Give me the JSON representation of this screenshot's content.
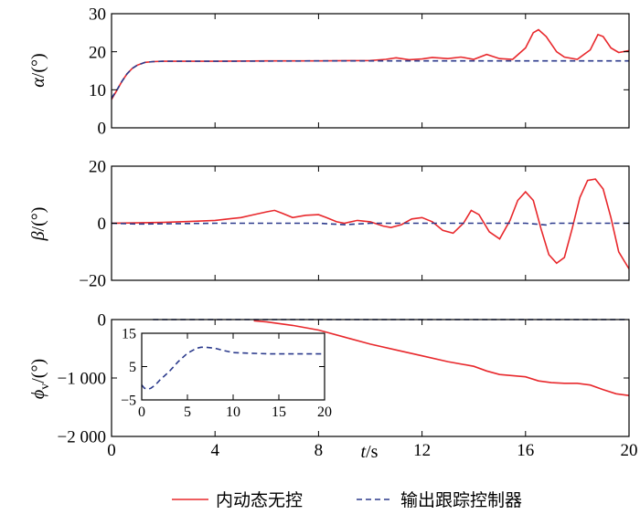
{
  "colors": {
    "red": "#e8282c",
    "blue": "#2b3a8c",
    "axis": "#000000"
  },
  "legend": {
    "red_label": "内动态无控",
    "blue_label": "输出跟踪控制器"
  },
  "xaxis": {
    "label_italic": "t",
    "label_rest": "/s",
    "ticks": [
      "0",
      "4",
      "8",
      "12",
      "16",
      "20"
    ],
    "range": [
      0,
      20
    ]
  },
  "chart_data": [
    {
      "type": "line",
      "ylabel": "α/(°)",
      "ylabel_italic": "α",
      "ylabel_rest": "/(°)",
      "xlim": [
        0,
        20
      ],
      "ylim": [
        0,
        30
      ],
      "yticks": [
        0,
        10,
        20,
        30
      ],
      "ytick_labels": [
        "0",
        "10",
        "20",
        "30"
      ],
      "series": [
        {
          "name": "内动态无控",
          "color": "#e8282c",
          "style": "solid",
          "x": [
            0,
            0.2,
            0.4,
            0.6,
            0.8,
            1.0,
            1.3,
            1.6,
            2.0,
            3.0,
            4.0,
            6.0,
            8.0,
            10.0,
            10.6,
            11.0,
            11.5,
            12.0,
            12.4,
            13.0,
            13.5,
            14.0,
            14.5,
            15.0,
            15.5,
            16.0,
            16.3,
            16.5,
            16.8,
            17.2,
            17.5,
            18.0,
            18.5,
            18.8,
            19.0,
            19.3,
            19.6,
            20.0
          ],
          "y": [
            7.5,
            9.8,
            12.2,
            14.2,
            15.6,
            16.5,
            17.2,
            17.4,
            17.5,
            17.5,
            17.5,
            17.6,
            17.6,
            17.7,
            18.0,
            18.4,
            17.9,
            18.1,
            18.5,
            18.2,
            18.6,
            18.0,
            19.3,
            18.2,
            18.0,
            21.0,
            25.0,
            25.8,
            24.0,
            20.0,
            18.6,
            18.0,
            20.5,
            24.5,
            24.0,
            21.0,
            19.8,
            20.3
          ]
        },
        {
          "name": "输出跟踪控制器",
          "color": "#2b3a8c",
          "style": "dashed",
          "x": [
            0,
            0.2,
            0.4,
            0.6,
            0.8,
            1.0,
            1.3,
            1.6,
            2.0,
            4.0,
            8.0,
            12.0,
            16.0,
            20.0
          ],
          "y": [
            7.8,
            9.9,
            12.2,
            14.2,
            15.6,
            16.5,
            17.2,
            17.4,
            17.5,
            17.5,
            17.6,
            17.6,
            17.6,
            17.6
          ]
        }
      ]
    },
    {
      "type": "line",
      "ylabel": "β/(°)",
      "ylabel_italic": "β",
      "ylabel_rest": "/(°)",
      "xlim": [
        0,
        20
      ],
      "ylim": [
        -20,
        20
      ],
      "yticks": [
        -20,
        0,
        20
      ],
      "ytick_labels": [
        "−20",
        "0",
        "20"
      ],
      "series": [
        {
          "name": "内动态无控",
          "color": "#e8282c",
          "style": "solid",
          "x": [
            0,
            2.0,
            3.0,
            4.0,
            5.0,
            5.5,
            6.0,
            6.3,
            6.6,
            7.0,
            7.5,
            8.0,
            8.3,
            8.7,
            9.0,
            9.5,
            10.0,
            10.5,
            10.8,
            11.2,
            11.6,
            12.0,
            12.4,
            12.8,
            13.2,
            13.6,
            13.9,
            14.2,
            14.6,
            15.0,
            15.4,
            15.7,
            16.0,
            16.3,
            16.6,
            16.9,
            17.2,
            17.5,
            17.8,
            18.1,
            18.4,
            18.7,
            19.0,
            19.3,
            19.6,
            20.0
          ],
          "y": [
            0,
            0.3,
            0.6,
            1.0,
            2.0,
            3.0,
            4.0,
            4.5,
            3.5,
            2.0,
            2.8,
            3.0,
            2.0,
            0.5,
            0.0,
            1.0,
            0.5,
            -1.0,
            -1.5,
            -0.5,
            1.5,
            2.0,
            0.5,
            -2.5,
            -3.5,
            0.0,
            4.5,
            3.0,
            -3.0,
            -5.5,
            1.0,
            8.0,
            11.0,
            8.0,
            -2.0,
            -11.0,
            -14.0,
            -12.0,
            -2.0,
            9.0,
            15.0,
            15.5,
            12.0,
            2.0,
            -10.0,
            -16.0
          ]
        },
        {
          "name": "输出跟踪控制器",
          "color": "#2b3a8c",
          "style": "dashed",
          "x": [
            0,
            1.0,
            2.0,
            4.0,
            6.0,
            8.0,
            9.0,
            10.0,
            12.0,
            14.0,
            16.0,
            16.8,
            17.0,
            18.0,
            20.0
          ],
          "y": [
            0,
            -0.3,
            -0.2,
            0,
            0,
            0,
            -0.5,
            0,
            0,
            0,
            0,
            -0.6,
            0,
            0,
            0
          ]
        }
      ]
    },
    {
      "type": "line",
      "ylabel": "ϕv/(°)",
      "ylabel_italic": "ϕ",
      "ylabel_sub": "v",
      "ylabel_rest": "/(°)",
      "xlim": [
        0,
        20
      ],
      "ylim": [
        -2000,
        0
      ],
      "yticks": [
        -2000,
        -1000,
        0
      ],
      "ytick_labels": [
        "−2 000",
        "−1 000",
        "0"
      ],
      "series": [
        {
          "name": "内动态无控",
          "color": "#e8282c",
          "style": "solid",
          "x": [
            5.5,
            6.0,
            7.0,
            8.0,
            9.0,
            10.0,
            11.0,
            12.0,
            13.0,
            14.0,
            14.5,
            15.0,
            15.5,
            16.0,
            16.5,
            17.0,
            17.5,
            18.0,
            18.5,
            19.0,
            19.5,
            20.0
          ],
          "y": [
            -20,
            -40,
            -100,
            -180,
            -300,
            -420,
            -520,
            -620,
            -720,
            -800,
            -880,
            -940,
            -960,
            -980,
            -1050,
            -1080,
            -1090,
            -1090,
            -1120,
            -1200,
            -1270,
            -1300
          ]
        },
        {
          "name": "输出跟踪控制器",
          "color": "#2b3a8c",
          "style": "dashed",
          "x": [
            1.6,
            20.0
          ],
          "y": [
            0,
            0
          ]
        }
      ]
    },
    {
      "type": "line",
      "role": "inset",
      "xlim": [
        0,
        20
      ],
      "ylim": [
        -5,
        15
      ],
      "xticks": [
        0,
        5,
        10,
        15,
        20
      ],
      "xtick_labels": [
        "0",
        "5",
        "10",
        "15",
        "20"
      ],
      "yticks": [
        -5,
        5,
        15
      ],
      "ytick_labels": [
        "−5",
        "5",
        "15"
      ],
      "series": [
        {
          "name": "输出跟踪控制器",
          "color": "#2b3a8c",
          "style": "dashed",
          "x": [
            0,
            0.3,
            0.7,
            1.0,
            1.5,
            2.0,
            3.0,
            4.0,
            5.0,
            6.0,
            6.5,
            7.0,
            8.0,
            9.0,
            10.0,
            12.0,
            14.0,
            16.0,
            18.0,
            20.0
          ],
          "y": [
            -0.5,
            -1.5,
            -1.8,
            -1.5,
            -0.5,
            1.0,
            3.5,
            6.5,
            9.0,
            10.5,
            10.8,
            10.8,
            10.5,
            9.8,
            9.2,
            9.0,
            8.8,
            8.8,
            8.8,
            8.8
          ]
        }
      ]
    }
  ]
}
